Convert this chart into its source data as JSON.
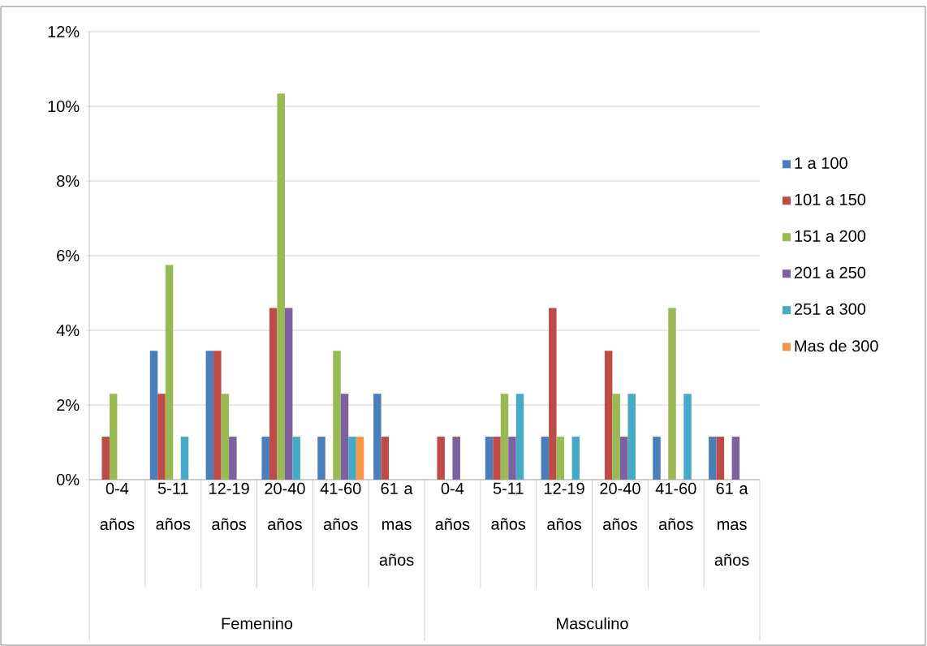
{
  "chart_data": {
    "type": "bar",
    "categories": [
      "0-4 años",
      "5-11 años",
      "12-19 años",
      "20-40 años",
      "41-60 años",
      "61 a mas años",
      "0-4 años",
      "5-11 años",
      "12-19 años",
      "20-40 años",
      "41-60 años",
      "61 a mas años"
    ],
    "series": [
      {
        "name": "1 a 100",
        "color": "#4a7ebb",
        "values": [
          0,
          3.45,
          3.45,
          1.15,
          1.15,
          2.3,
          0,
          1.15,
          1.15,
          0,
          1.15,
          1.15
        ]
      },
      {
        "name": "101 a 150",
        "color": "#be4b48",
        "values": [
          1.15,
          2.3,
          3.45,
          4.6,
          0,
          1.15,
          1.15,
          1.15,
          4.6,
          3.45,
          0,
          1.15
        ]
      },
      {
        "name": "151 a 200",
        "color": "#98b954",
        "values": [
          2.3,
          5.75,
          2.3,
          10.34,
          3.45,
          0,
          0,
          2.3,
          1.15,
          2.3,
          4.6,
          0
        ]
      },
      {
        "name": "201 a 250",
        "color": "#7d60a0",
        "values": [
          0,
          0,
          1.15,
          4.6,
          2.3,
          0,
          1.15,
          1.15,
          0,
          1.15,
          0,
          1.15
        ]
      },
      {
        "name": "251 a 300",
        "color": "#46aac5",
        "values": [
          0,
          1.15,
          0,
          1.15,
          1.15,
          0,
          0,
          2.3,
          1.15,
          2.3,
          2.3,
          0
        ]
      },
      {
        "name": "Mas de 300",
        "color": "#f79646",
        "values": [
          0,
          0,
          0,
          0,
          1.15,
          0,
          0,
          0,
          0,
          0,
          0,
          0
        ]
      }
    ],
    "ylim": [
      0,
      12
    ],
    "yticks": [
      {
        "value": 0,
        "label": "0%"
      },
      {
        "value": 2,
        "label": "2%"
      },
      {
        "value": 4,
        "label": "4%"
      },
      {
        "value": 6,
        "label": "6%"
      },
      {
        "value": 8,
        "label": "8%"
      },
      {
        "value": 10,
        "label": "10%"
      },
      {
        "value": 12,
        "label": "12%"
      }
    ],
    "grid": "y",
    "legend": "right",
    "annotations": [
      "Femenino",
      "Masculino"
    ]
  }
}
